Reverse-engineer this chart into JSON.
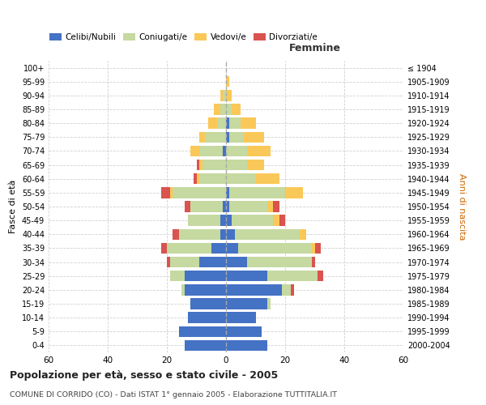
{
  "age_groups": [
    "0-4",
    "5-9",
    "10-14",
    "15-19",
    "20-24",
    "25-29",
    "30-34",
    "35-39",
    "40-44",
    "45-49",
    "50-54",
    "55-59",
    "60-64",
    "65-69",
    "70-74",
    "75-79",
    "80-84",
    "85-89",
    "90-94",
    "95-99",
    "100+"
  ],
  "birth_years": [
    "2000-2004",
    "1995-1999",
    "1990-1994",
    "1985-1989",
    "1980-1984",
    "1975-1979",
    "1970-1974",
    "1965-1969",
    "1960-1964",
    "1955-1959",
    "1950-1954",
    "1945-1949",
    "1940-1944",
    "1935-1939",
    "1930-1934",
    "1925-1929",
    "1920-1924",
    "1915-1919",
    "1910-1914",
    "1905-1909",
    "≤ 1904"
  ],
  "male": {
    "celibi": [
      14,
      16,
      13,
      12,
      14,
      14,
      9,
      5,
      2,
      2,
      1,
      0,
      0,
      0,
      1,
      0,
      0,
      0,
      0,
      0,
      0
    ],
    "coniugati": [
      0,
      0,
      0,
      0,
      1,
      5,
      10,
      15,
      14,
      11,
      11,
      18,
      9,
      8,
      8,
      7,
      3,
      2,
      1,
      0,
      0
    ],
    "vedovi": [
      0,
      0,
      0,
      0,
      0,
      0,
      0,
      0,
      0,
      0,
      0,
      1,
      1,
      1,
      3,
      2,
      3,
      2,
      1,
      0,
      0
    ],
    "divorziati": [
      0,
      0,
      0,
      0,
      0,
      0,
      1,
      2,
      2,
      0,
      2,
      3,
      1,
      1,
      0,
      0,
      0,
      0,
      0,
      0,
      0
    ]
  },
  "female": {
    "nubili": [
      14,
      12,
      10,
      14,
      19,
      14,
      7,
      4,
      3,
      2,
      1,
      1,
      0,
      0,
      0,
      1,
      1,
      0,
      0,
      0,
      0
    ],
    "coniugate": [
      0,
      0,
      0,
      1,
      3,
      17,
      22,
      25,
      22,
      14,
      13,
      19,
      10,
      7,
      7,
      5,
      4,
      2,
      0,
      0,
      0
    ],
    "vedove": [
      0,
      0,
      0,
      0,
      0,
      0,
      0,
      1,
      2,
      2,
      2,
      6,
      8,
      6,
      8,
      7,
      5,
      3,
      2,
      1,
      0
    ],
    "divorziate": [
      0,
      0,
      0,
      0,
      1,
      2,
      1,
      2,
      0,
      2,
      2,
      0,
      0,
      0,
      0,
      0,
      0,
      0,
      0,
      0,
      0
    ]
  },
  "colors": {
    "celibi": "#4472c4",
    "coniugati": "#c5d9a0",
    "vedovi": "#fac858",
    "divorziati": "#d9534f"
  },
  "title": "Popolazione per età, sesso e stato civile - 2005",
  "subtitle": "COMUNE DI CORRIDO (CO) - Dati ISTAT 1° gennaio 2005 - Elaborazione TUTTITALIA.IT",
  "xlabel_right": "Femmine",
  "ylabel_left": "Fasce di età",
  "ylabel_right": "Anni di nascita",
  "xlim": 60,
  "bg_color": "#ffffff",
  "grid_color": "#cccccc"
}
